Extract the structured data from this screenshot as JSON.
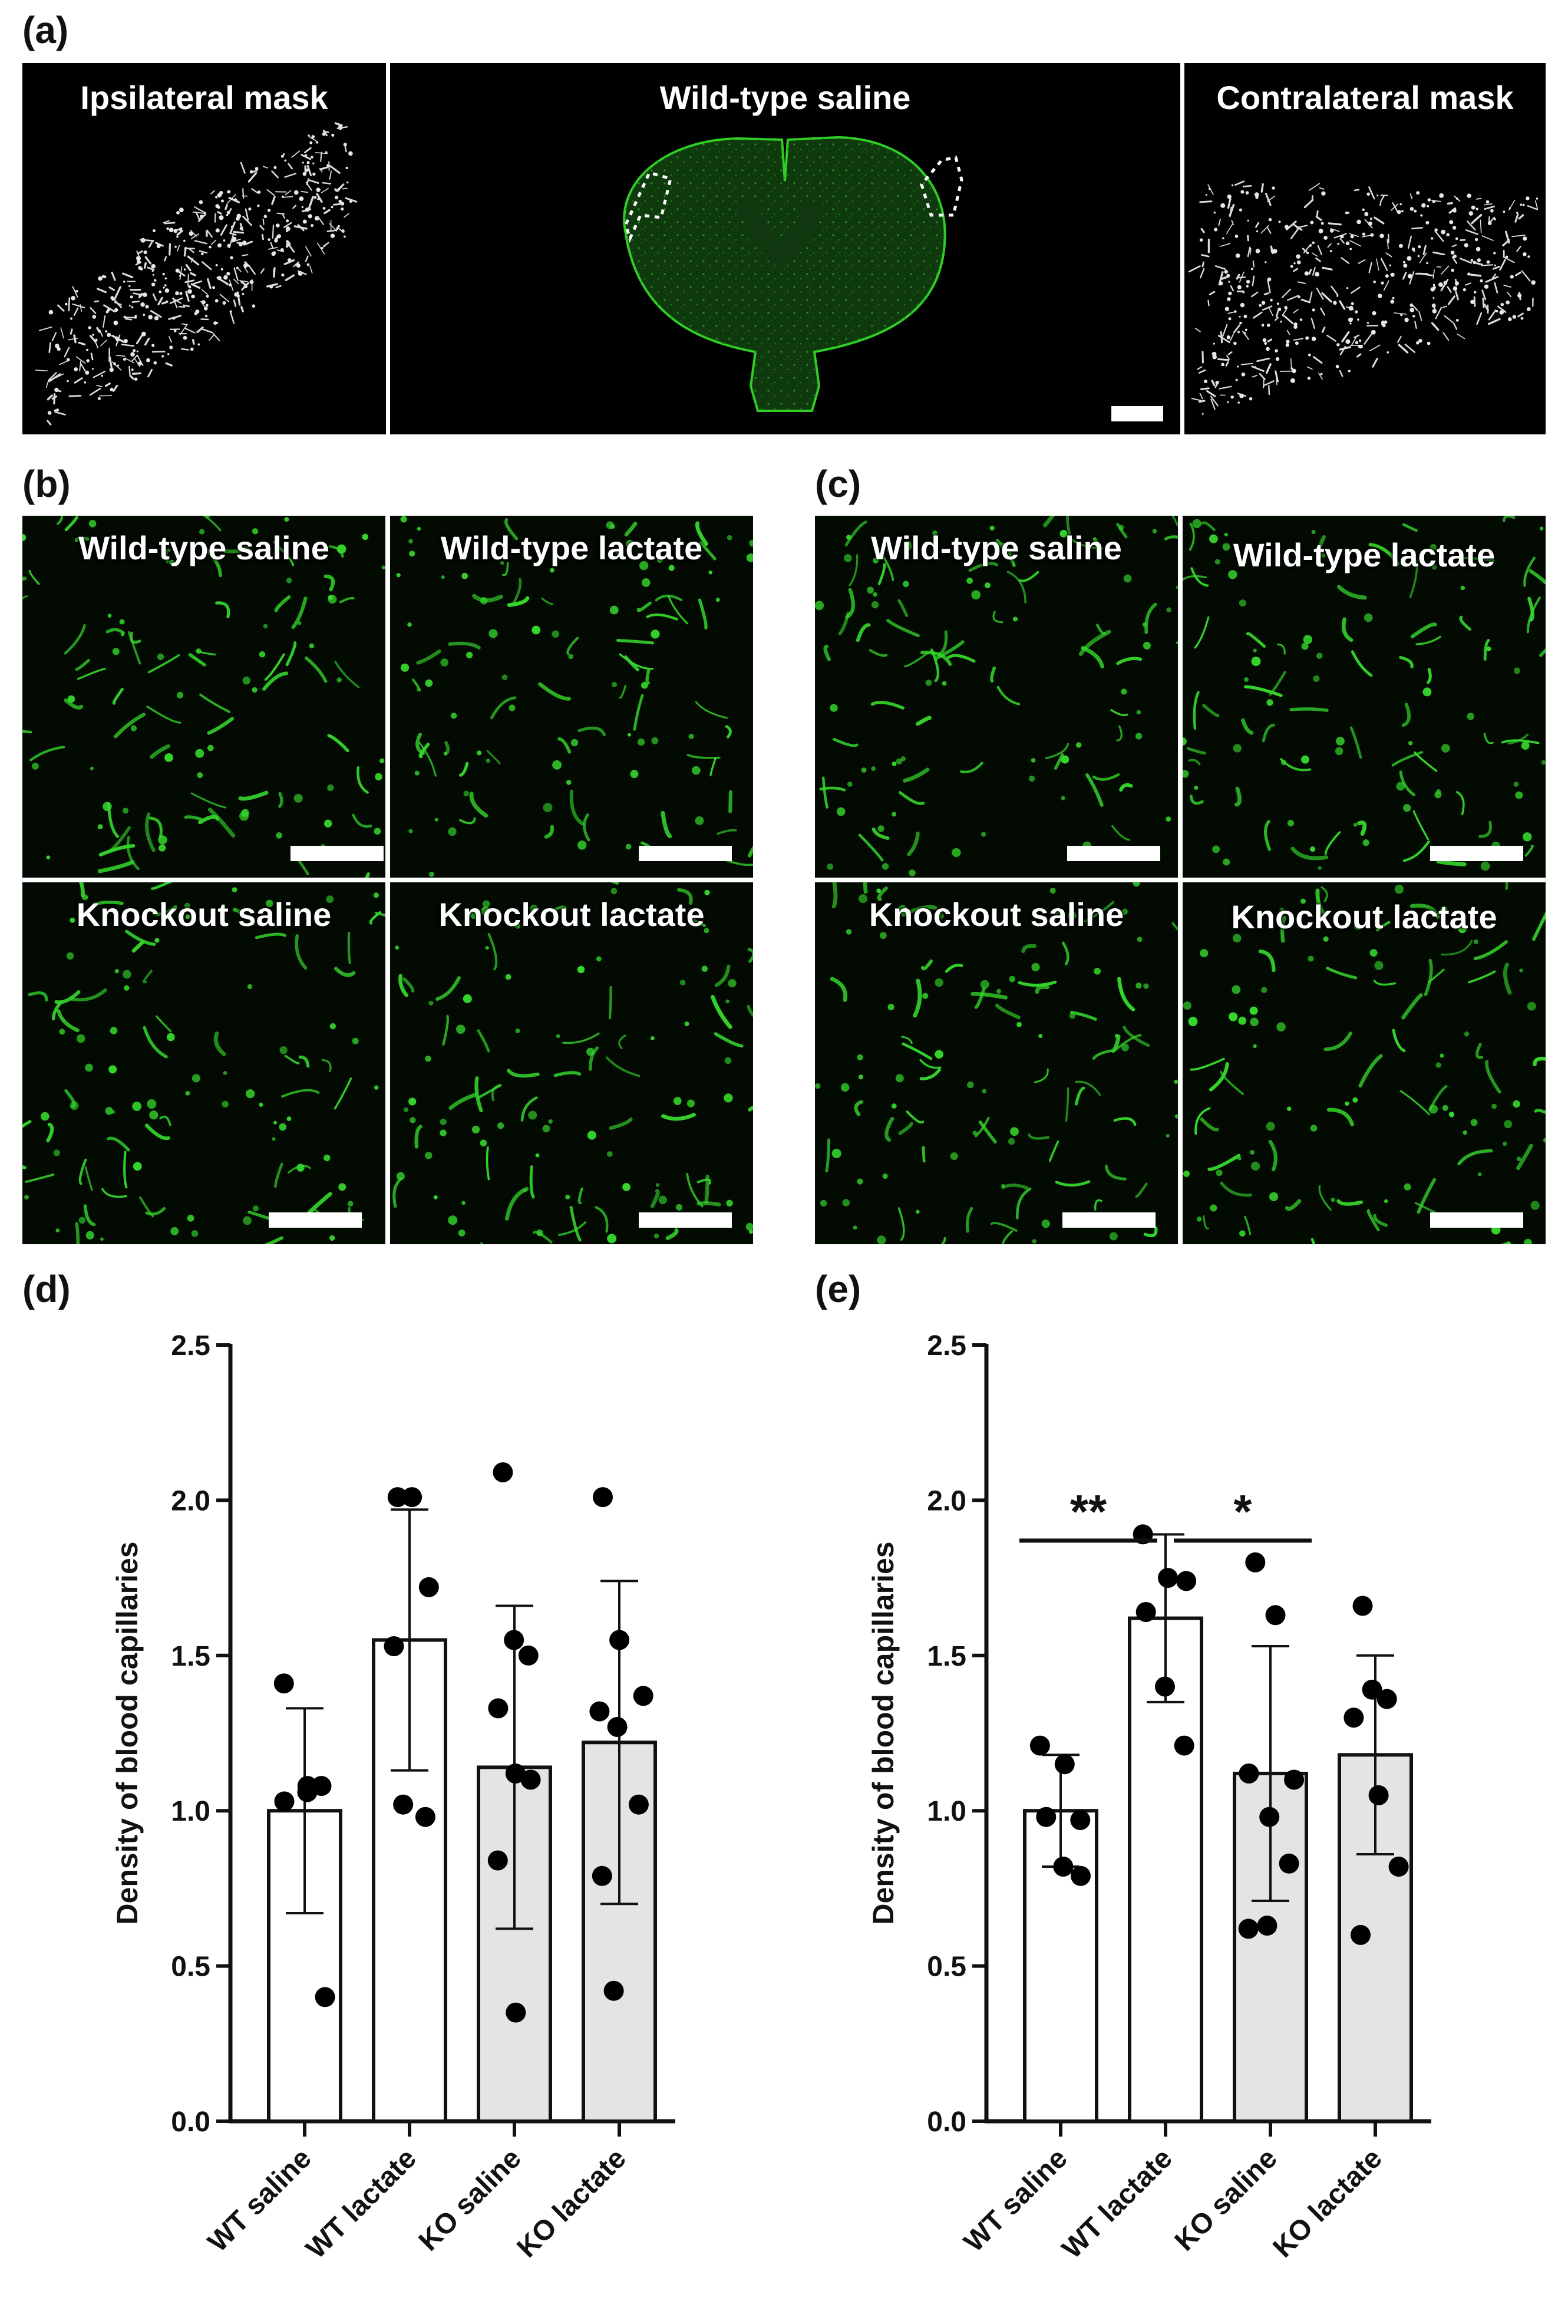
{
  "panels": {
    "a": {
      "label": "(a)",
      "titles": [
        "Ipsilateral mask",
        "Wild-type saline",
        "Contralateral  mask"
      ]
    },
    "b": {
      "label": "(b)",
      "titles": [
        "Wild-type saline",
        "Wild-type lactate",
        "Knockout saline",
        "Knockout lactate"
      ]
    },
    "c": {
      "label": "(c)",
      "titles": [
        "Wild-type saline",
        "Wild-type lactate",
        "Knockout saline",
        "Knockout lactate"
      ]
    },
    "d": {
      "label": "(d)"
    },
    "e": {
      "label": "(e)"
    }
  },
  "colors": {
    "vessel": "#35d62c",
    "bar_wt": "#ffffff",
    "bar_ko": "#e4e4e4",
    "axis": "#111111"
  },
  "chart_data": [
    {
      "panel": "d",
      "type": "bar",
      "ylabel": "Density of blood capillaries",
      "ylim": [
        0,
        2.5
      ],
      "yticks": [
        "0.0",
        "0.5",
        "1.0",
        "1.5",
        "2.0",
        "2.5"
      ],
      "categories": [
        "WT saline",
        "WT lactate",
        "KO saline",
        "KO lactate"
      ],
      "means": [
        1.0,
        1.55,
        1.14,
        1.22
      ],
      "sd": [
        0.33,
        0.42,
        0.52,
        0.52
      ],
      "points": [
        [
          1.41,
          1.08,
          1.08,
          1.03,
          1.06,
          0.4
        ],
        [
          2.01,
          2.01,
          1.72,
          1.53,
          1.02,
          0.98
        ],
        [
          2.09,
          1.55,
          1.5,
          1.33,
          1.12,
          1.1,
          0.84,
          0.35
        ],
        [
          2.01,
          1.55,
          1.37,
          1.32,
          1.27,
          1.02,
          0.79,
          0.42
        ]
      ],
      "significance": []
    },
    {
      "panel": "e",
      "type": "bar",
      "ylabel": "Density of blood capillaries",
      "ylim": [
        0,
        2.5
      ],
      "yticks": [
        "0.0",
        "0.5",
        "1.0",
        "1.5",
        "2.0",
        "2.5"
      ],
      "categories": [
        "WT saline",
        "WT lactate",
        "KO saline",
        "KO lactate"
      ],
      "means": [
        1.0,
        1.62,
        1.12,
        1.18
      ],
      "sd": [
        0.18,
        0.27,
        0.41,
        0.32
      ],
      "points": [
        [
          1.21,
          1.15,
          0.97,
          0.98,
          0.82,
          0.79
        ],
        [
          1.89,
          1.75,
          1.74,
          1.64,
          1.4,
          1.21
        ],
        [
          1.8,
          1.63,
          1.1,
          1.12,
          0.98,
          0.83,
          0.62,
          0.63
        ],
        [
          1.66,
          1.39,
          1.36,
          1.3,
          1.05,
          0.82,
          0.6
        ]
      ],
      "significance": [
        {
          "from": 0,
          "to": 1,
          "label": "**",
          "y": 1.87
        },
        {
          "from": 1,
          "to": 2,
          "label": "*",
          "y": 1.87
        }
      ]
    }
  ]
}
